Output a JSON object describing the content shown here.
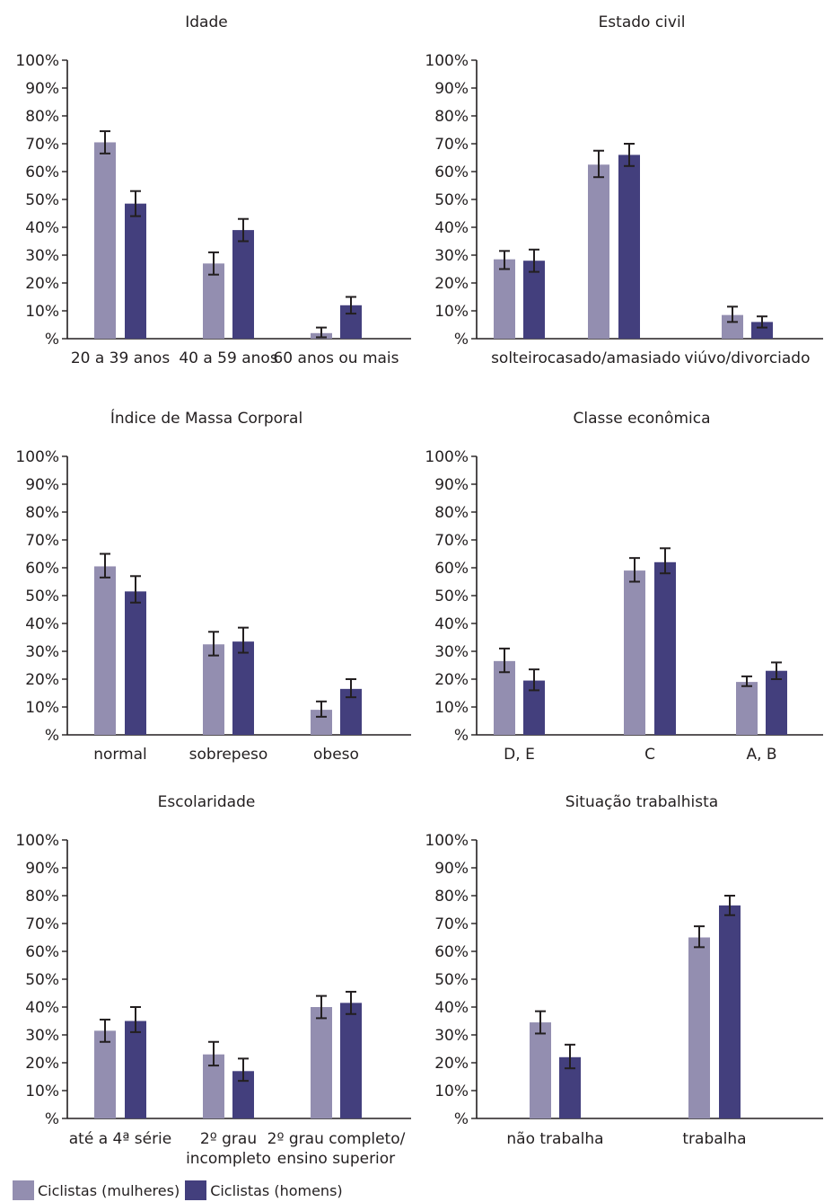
{
  "colors": {
    "women": "#938eb0",
    "men": "#433f7d",
    "axis": "#231f20",
    "error": "#231f20"
  },
  "legend": [
    {
      "name": "Ciclistas (mulheres)",
      "color": "#938eb0"
    },
    {
      "name": "Ciclistas (homens)",
      "color": "#433f7d"
    }
  ],
  "chart_data": [
    {
      "type": "bar",
      "title": "Idade",
      "ylim": [
        0,
        100
      ],
      "yticks": [
        "%",
        "10%",
        "20%",
        "30%",
        "40%",
        "50%",
        "60%",
        "70%",
        "80%",
        "90%",
        "100%"
      ],
      "categories": [
        [
          "20 a 39 anos"
        ],
        [
          "40 a 59 anos"
        ],
        [
          "60 anos ou mais"
        ]
      ],
      "series": [
        {
          "name": "Ciclistas (mulheres)",
          "values": [
            70.5,
            27,
            2
          ],
          "err_low": [
            66.5,
            23,
            0.5
          ],
          "err_high": [
            74.5,
            31,
            4
          ]
        },
        {
          "name": "Ciclistas (homens)",
          "values": [
            48.5,
            39,
            12
          ],
          "err_low": [
            44,
            35,
            9
          ],
          "err_high": [
            53,
            43,
            15
          ]
        }
      ]
    },
    {
      "type": "bar",
      "title": "Estado civil",
      "ylim": [
        0,
        100
      ],
      "yticks": [
        "%",
        "10%",
        "20%",
        "30%",
        "40%",
        "50%",
        "60%",
        "70%",
        "80%",
        "90%",
        "100%"
      ],
      "categories": [
        [
          "solteiro"
        ],
        [
          "casado/amasiado"
        ],
        [
          "viúvo/divorciado"
        ]
      ],
      "series": [
        {
          "name": "Ciclistas (mulheres)",
          "values": [
            28.5,
            62.5,
            8.5
          ],
          "err_low": [
            25,
            58,
            6
          ],
          "err_high": [
            31.5,
            67.5,
            11.5
          ]
        },
        {
          "name": "Ciclistas (homens)",
          "values": [
            28,
            66,
            6
          ],
          "err_low": [
            24,
            62,
            4
          ],
          "err_high": [
            32,
            70,
            8
          ]
        }
      ]
    },
    {
      "type": "bar",
      "title": "Índice de Massa Corporal",
      "ylim": [
        0,
        100
      ],
      "yticks": [
        "%",
        "10%",
        "20%",
        "30%",
        "40%",
        "50%",
        "60%",
        "70%",
        "80%",
        "90%",
        "100%"
      ],
      "categories": [
        [
          "normal"
        ],
        [
          "sobrepeso"
        ],
        [
          "obeso"
        ]
      ],
      "series": [
        {
          "name": "Ciclistas (mulheres)",
          "values": [
            60.5,
            32.5,
            9
          ],
          "err_low": [
            56.5,
            28.5,
            6.5
          ],
          "err_high": [
            65,
            37,
            12
          ]
        },
        {
          "name": "Ciclistas (homens)",
          "values": [
            51.5,
            33.5,
            16.5
          ],
          "err_low": [
            47.5,
            29.5,
            13.5
          ],
          "err_high": [
            57,
            38.5,
            20
          ]
        }
      ]
    },
    {
      "type": "bar",
      "title": "Classe econômica",
      "ylim": [
        0,
        100
      ],
      "yticks": [
        "%",
        "10%",
        "20%",
        "30%",
        "40%",
        "50%",
        "60%",
        "70%",
        "80%",
        "90%",
        "100%"
      ],
      "categories": [
        [
          "D, E"
        ],
        [
          "C"
        ],
        [
          "A, B"
        ]
      ],
      "series": [
        {
          "name": "Ciclistas (mulheres)",
          "values": [
            26.5,
            59,
            19
          ],
          "err_low": [
            22.5,
            55,
            17.5
          ],
          "err_high": [
            31,
            63.5,
            21
          ]
        },
        {
          "name": "Ciclistas (homens)",
          "values": [
            19.5,
            62,
            23
          ],
          "err_low": [
            16,
            58,
            20
          ],
          "err_high": [
            23.5,
            67,
            26
          ]
        }
      ]
    },
    {
      "type": "bar",
      "title": "Escolaridade",
      "ylim": [
        0,
        100
      ],
      "yticks": [
        "%",
        "10%",
        "20%",
        "30%",
        "40%",
        "50%",
        "60%",
        "70%",
        "80%",
        "90%",
        "100%"
      ],
      "categories": [
        [
          "até a 4ª série"
        ],
        [
          "2º grau",
          "incompleto"
        ],
        [
          "2º grau completo/",
          "ensino superior"
        ]
      ],
      "series": [
        {
          "name": "Ciclistas (mulheres)",
          "values": [
            31.5,
            23,
            40
          ],
          "err_low": [
            27.5,
            19,
            36
          ],
          "err_high": [
            35.5,
            27.5,
            44
          ]
        },
        {
          "name": "Ciclistas (homens)",
          "values": [
            35,
            17,
            41.5
          ],
          "err_low": [
            31,
            13.5,
            37.5
          ],
          "err_high": [
            40,
            21.5,
            45.5
          ]
        }
      ]
    },
    {
      "type": "bar",
      "title": "Situação trabalhista",
      "ylim": [
        0,
        100
      ],
      "yticks": [
        "%",
        "10%",
        "20%",
        "30%",
        "40%",
        "50%",
        "60%",
        "70%",
        "80%",
        "90%",
        "100%"
      ],
      "categories": [
        [
          "não trabalha"
        ],
        [
          "trabalha"
        ]
      ],
      "series": [
        {
          "name": "Ciclistas (mulheres)",
          "values": [
            34.5,
            65
          ],
          "err_low": [
            30.5,
            61.5
          ],
          "err_high": [
            38.5,
            69
          ]
        },
        {
          "name": "Ciclistas (homens)",
          "values": [
            22,
            76.5
          ],
          "err_low": [
            18,
            73
          ],
          "err_high": [
            26.5,
            80
          ]
        }
      ]
    }
  ]
}
